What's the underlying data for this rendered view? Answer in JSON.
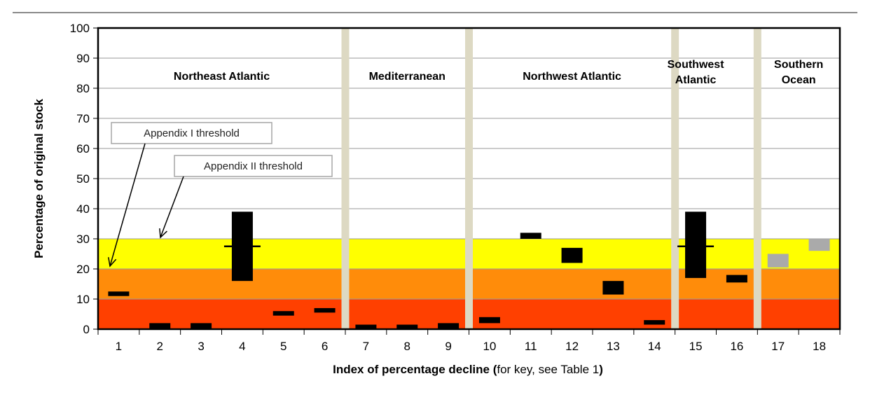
{
  "chart_data": {
    "type": "bar",
    "ylabel": "Percentage of original stock",
    "xlabel": {
      "bold": "Index of percentage decline (",
      "normal": "for key, see Table 1",
      "bold_end": ")"
    },
    "ylim": [
      0,
      100
    ],
    "yticks": [
      "0",
      "10",
      "20",
      "30",
      "40",
      "50",
      "60",
      "70",
      "80",
      "90",
      "100"
    ],
    "categories": [
      "1",
      "2",
      "3",
      "4",
      "5",
      "6",
      "7",
      "8",
      "9",
      "10",
      "11",
      "12",
      "13",
      "14",
      "15",
      "16",
      "17",
      "18"
    ],
    "bands": [
      {
        "from": 0,
        "to": 10,
        "color": "#ff4000"
      },
      {
        "from": 10,
        "to": 20,
        "color": "#ff8c0a"
      },
      {
        "from": 20,
        "to": 30,
        "color": "#ffff00"
      }
    ],
    "separators_after": [
      6,
      9,
      14,
      16
    ],
    "separator_color": "#ddd9c3",
    "regions": [
      {
        "lines": [
          "Northeast Atlantic"
        ],
        "from": 1,
        "to": 6
      },
      {
        "lines": [
          "Mediterranean"
        ],
        "from": 7,
        "to": 9
      },
      {
        "lines": [
          "Northwest Atlantic"
        ],
        "from": 10,
        "to": 14
      },
      {
        "lines": [
          "Southwest",
          "Atlantic"
        ],
        "from": 15,
        "to": 15
      },
      {
        "lines": [
          "Southern",
          "Ocean"
        ],
        "from": 17,
        "to": 18
      }
    ],
    "ranges": [
      {
        "x": 1,
        "low": 11,
        "high": 12.5,
        "color": "#000000"
      },
      {
        "x": 2,
        "low": 0,
        "high": 2,
        "color": "#000000"
      },
      {
        "x": 3,
        "low": 0,
        "high": 2,
        "color": "#000000"
      },
      {
        "x": 4,
        "low": 16,
        "high": 39,
        "mid": 27.5,
        "color": "#000000"
      },
      {
        "x": 5,
        "low": 4.5,
        "high": 6,
        "color": "#000000"
      },
      {
        "x": 6,
        "low": 5.5,
        "high": 7,
        "color": "#000000"
      },
      {
        "x": 7,
        "low": 0,
        "high": 1.5,
        "color": "#000000"
      },
      {
        "x": 8,
        "low": 0,
        "high": 1.5,
        "color": "#000000"
      },
      {
        "x": 9,
        "low": 0,
        "high": 2,
        "color": "#000000"
      },
      {
        "x": 10,
        "low": 2,
        "high": 4,
        "color": "#000000"
      },
      {
        "x": 11,
        "low": 30,
        "high": 32,
        "color": "#000000"
      },
      {
        "x": 12,
        "low": 22,
        "high": 27,
        "color": "#000000"
      },
      {
        "x": 13,
        "low": 11.5,
        "high": 16,
        "color": "#000000"
      },
      {
        "x": 14,
        "low": 1.5,
        "high": 3,
        "color": "#000000"
      },
      {
        "x": 15,
        "low": 17,
        "high": 39,
        "mid": 27.5,
        "color": "#000000"
      },
      {
        "x": 16,
        "low": 15.5,
        "high": 18,
        "color": "#000000"
      },
      {
        "x": 17,
        "low": 20.5,
        "high": 25,
        "color": "#aaaaaa"
      },
      {
        "x": 18,
        "low": 26,
        "high": 30,
        "color": "#aaaaaa"
      }
    ],
    "annotations": [
      {
        "text": "Appendix I threshold",
        "points_to": 20,
        "target_x": 1
      },
      {
        "text": "Appendix II threshold",
        "points_to": 30,
        "target_x": 2
      }
    ]
  }
}
